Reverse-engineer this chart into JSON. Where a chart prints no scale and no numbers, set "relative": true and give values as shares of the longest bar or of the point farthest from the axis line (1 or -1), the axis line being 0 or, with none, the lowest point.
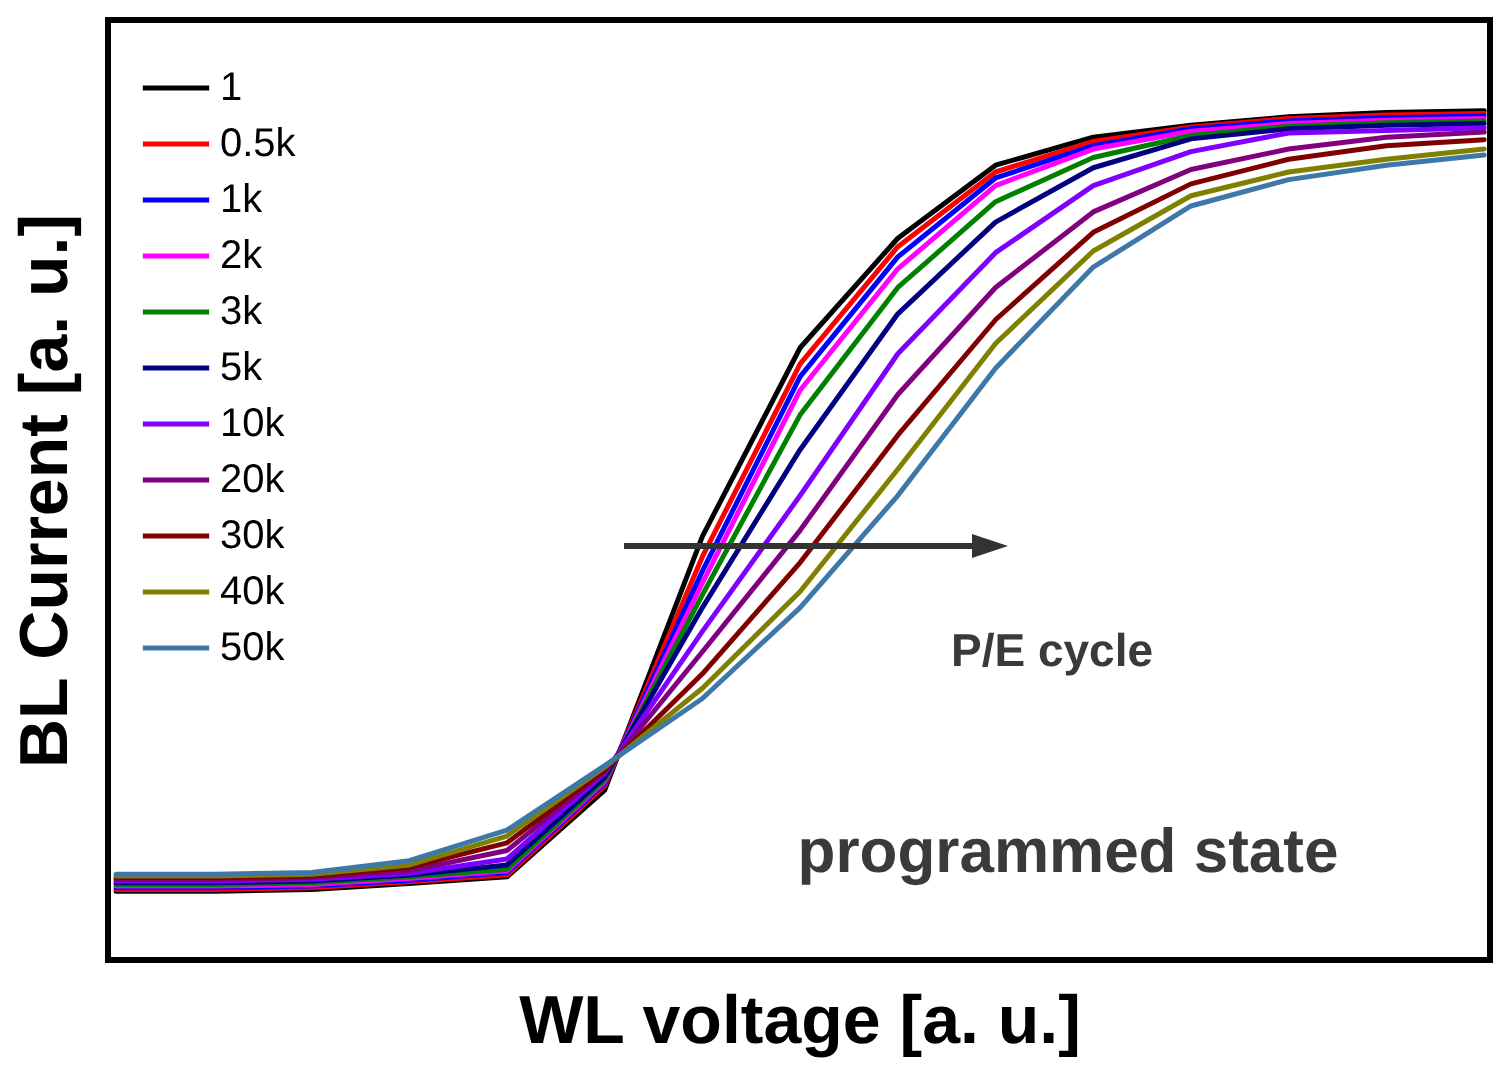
{
  "chart_data": {
    "type": "line",
    "relative": true,
    "xlabel": "WL voltage [a. u.]",
    "ylabel": "BL Current [a. u.]",
    "legend": "top left",
    "annotations": [
      "P/E cycle",
      "programmed state"
    ],
    "categories": [
      null,
      null,
      null,
      null,
      null,
      null,
      null,
      null,
      null,
      null,
      null,
      null,
      null,
      null,
      null
    ],
    "series": [
      {
        "name": "1",
        "color": "#000000",
        "values": [
          0.081,
          0.081,
          0.083,
          0.09,
          0.098,
          0.2,
          0.499,
          0.721,
          0.85,
          0.936,
          0.969,
          0.983,
          0.993,
          0.998,
          1
        ]
      },
      {
        "name": "0.5k",
        "color": "#ff0000",
        "values": [
          0.083,
          0.083,
          0.085,
          0.092,
          0.1,
          0.205,
          0.475,
          0.702,
          0.84,
          0.928,
          0.964,
          0.981,
          0.991,
          0.995,
          0.997
        ]
      },
      {
        "name": "1k",
        "color": "#0000ff",
        "values": [
          0.085,
          0.085,
          0.087,
          0.094,
          0.103,
          0.208,
          0.458,
          0.687,
          0.828,
          0.921,
          0.959,
          0.979,
          0.988,
          0.992,
          0.994
        ]
      },
      {
        "name": "2k",
        "color": "#ff00ff",
        "values": [
          0.087,
          0.087,
          0.089,
          0.096,
          0.105,
          0.21,
          0.444,
          0.671,
          0.814,
          0.912,
          0.955,
          0.976,
          0.985,
          0.989,
          0.991
        ]
      },
      {
        "name": "3k",
        "color": "#008000",
        "values": [
          0.089,
          0.089,
          0.091,
          0.098,
          0.107,
          0.212,
          0.43,
          0.642,
          0.792,
          0.893,
          0.945,
          0.971,
          0.982,
          0.986,
          0.988
        ]
      },
      {
        "name": "5k",
        "color": "#000080",
        "values": [
          0.091,
          0.091,
          0.093,
          0.1,
          0.112,
          0.215,
          0.415,
          0.601,
          0.761,
          0.869,
          0.933,
          0.967,
          0.979,
          0.983,
          0.985
        ]
      },
      {
        "name": "10k",
        "color": "#8000ff",
        "values": [
          0.093,
          0.093,
          0.095,
          0.102,
          0.119,
          0.22,
          0.387,
          0.547,
          0.714,
          0.833,
          0.912,
          0.952,
          0.974,
          0.977,
          0.98
        ]
      },
      {
        "name": "20k",
        "color": "#800080",
        "values": [
          0.095,
          0.095,
          0.097,
          0.105,
          0.129,
          0.222,
          0.363,
          0.506,
          0.666,
          0.792,
          0.881,
          0.931,
          0.955,
          0.969,
          0.975
        ]
      },
      {
        "name": "30k",
        "color": "#800000",
        "values": [
          0.097,
          0.097,
          0.099,
          0.109,
          0.138,
          0.224,
          0.337,
          0.468,
          0.618,
          0.754,
          0.857,
          0.914,
          0.943,
          0.959,
          0.966
        ]
      },
      {
        "name": "40k",
        "color": "#808000",
        "values": [
          0.099,
          0.099,
          0.101,
          0.112,
          0.146,
          0.227,
          0.32,
          0.434,
          0.578,
          0.726,
          0.835,
          0.9,
          0.928,
          0.943,
          0.955
        ]
      },
      {
        "name": "50k",
        "color": "#3d78a8",
        "values": [
          0.101,
          0.101,
          0.103,
          0.117,
          0.153,
          0.229,
          0.308,
          0.415,
          0.547,
          0.697,
          0.816,
          0.888,
          0.919,
          0.936,
          0.948
        ]
      }
    ]
  }
}
